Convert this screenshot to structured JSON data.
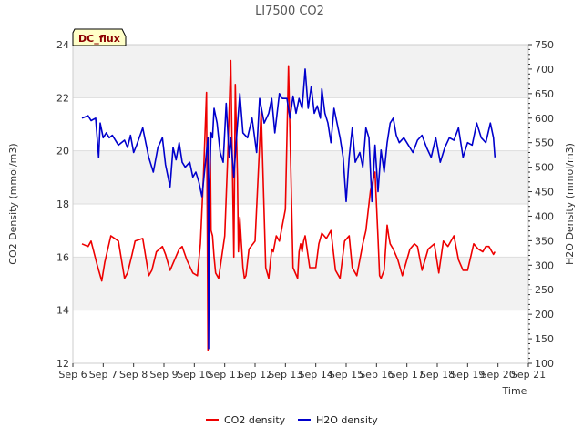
{
  "chart_data": {
    "type": "line",
    "title": "LI7500 CO2",
    "site_tag": "DC_flux",
    "xlabel": "Time",
    "ylabel_left": "CO2 Density (mmol/m3)",
    "ylabel_right": "H2O Density (mmol/m3)",
    "x_ticks": [
      "Sep 6",
      "Sep 7",
      "Sep 8",
      "Sep 9",
      "Sep 10",
      "Sep 11",
      "Sep 12",
      "Sep 13",
      "Sep 14",
      "Sep 15",
      "Sep 16",
      "Sep 17",
      "Sep 18",
      "Sep 19",
      "Sep 20",
      "Sep 21"
    ],
    "xlim": [
      0,
      15
    ],
    "ylim_left": [
      12,
      24
    ],
    "ylim_right": [
      100,
      750
    ],
    "y_ticks_left": [
      12,
      14,
      16,
      18,
      20,
      22,
      24
    ],
    "y_ticks_right": [
      100,
      150,
      200,
      250,
      300,
      350,
      400,
      450,
      500,
      550,
      600,
      650,
      700,
      750
    ],
    "grid": true,
    "legend_position": "bottom-center",
    "series": [
      {
        "name": "CO2 density",
        "color": "#ee0000",
        "axis": "left",
        "x": [
          0.3,
          0.5,
          0.6,
          0.8,
          0.95,
          1.05,
          1.25,
          1.5,
          1.7,
          1.8,
          1.95,
          2.05,
          2.3,
          2.5,
          2.6,
          2.75,
          2.95,
          3.05,
          3.2,
          3.5,
          3.6,
          3.75,
          3.95,
          4.1,
          4.2,
          4.3,
          4.4,
          4.45,
          4.5,
          4.52,
          4.55,
          4.6,
          4.65,
          4.7,
          4.8,
          5.0,
          5.1,
          5.2,
          5.3,
          5.35,
          5.42,
          5.45,
          5.5,
          5.55,
          5.6,
          5.65,
          5.7,
          5.8,
          6.0,
          6.1,
          6.2,
          6.35,
          6.45,
          6.55,
          6.6,
          6.7,
          6.8,
          7.0,
          7.1,
          7.25,
          7.4,
          7.45,
          7.5,
          7.55,
          7.6,
          7.65,
          7.7,
          7.8,
          8.0,
          8.1,
          8.2,
          8.35,
          8.5,
          8.65,
          8.8,
          8.95,
          9.1,
          9.2,
          9.35,
          9.55,
          9.65,
          9.8,
          9.95,
          10.05,
          10.1,
          10.15,
          10.25,
          10.35,
          10.4,
          10.45,
          10.55,
          10.7,
          10.85,
          10.95,
          11.1,
          11.25,
          11.35,
          11.5,
          11.7,
          11.9,
          12.05,
          12.2,
          12.35,
          12.55,
          12.7,
          12.85,
          13.0,
          13.2,
          13.35,
          13.5,
          13.6,
          13.7,
          13.8,
          13.85,
          13.9
        ],
        "values": [
          16.5,
          16.4,
          16.6,
          15.7,
          15.1,
          15.8,
          16.8,
          16.6,
          15.2,
          15.4,
          16.1,
          16.6,
          16.7,
          15.3,
          15.5,
          16.2,
          16.4,
          16.1,
          15.5,
          16.3,
          16.4,
          15.9,
          15.4,
          15.3,
          16.5,
          19.0,
          22.2,
          12.5,
          16.0,
          20.7,
          17.0,
          16.8,
          16.0,
          15.4,
          15.2,
          16.8,
          19.8,
          23.4,
          16.0,
          22.5,
          19.0,
          16.2,
          17.5,
          16.5,
          15.6,
          15.2,
          15.3,
          16.3,
          16.6,
          19.0,
          21.5,
          15.6,
          15.2,
          16.3,
          16.2,
          16.8,
          16.6,
          17.8,
          23.2,
          15.6,
          15.2,
          16.2,
          16.5,
          16.2,
          16.6,
          16.8,
          16.4,
          15.6,
          15.6,
          16.5,
          16.9,
          16.7,
          17.0,
          15.5,
          15.2,
          16.6,
          16.8,
          15.6,
          15.3,
          16.5,
          17.0,
          18.5,
          19.2,
          16.7,
          15.3,
          15.2,
          15.5,
          17.2,
          16.8,
          16.5,
          16.3,
          15.9,
          15.3,
          15.7,
          16.3,
          16.5,
          16.4,
          15.5,
          16.3,
          16.5,
          15.4,
          16.6,
          16.4,
          16.8,
          15.9,
          15.5,
          15.5,
          16.5,
          16.3,
          16.2,
          16.4,
          16.4,
          16.2,
          16.1,
          16.2
        ]
      },
      {
        "name": "H2O density",
        "color": "#0000cc",
        "axis": "right",
        "x": [
          0.3,
          0.5,
          0.6,
          0.75,
          0.85,
          0.9,
          1.0,
          1.1,
          1.2,
          1.3,
          1.5,
          1.7,
          1.8,
          1.9,
          2.0,
          2.1,
          2.3,
          2.5,
          2.65,
          2.8,
          2.95,
          3.05,
          3.2,
          3.3,
          3.4,
          3.5,
          3.6,
          3.7,
          3.85,
          3.95,
          4.05,
          4.15,
          4.25,
          4.35,
          4.45,
          4.47,
          4.5,
          4.55,
          4.6,
          4.65,
          4.75,
          4.85,
          4.95,
          5.05,
          5.15,
          5.2,
          5.3,
          5.4,
          5.5,
          5.6,
          5.75,
          5.9,
          6.05,
          6.15,
          6.3,
          6.45,
          6.55,
          6.65,
          6.8,
          6.9,
          7.05,
          7.15,
          7.25,
          7.35,
          7.45,
          7.55,
          7.65,
          7.75,
          7.85,
          7.95,
          8.05,
          8.15,
          8.2,
          8.3,
          8.4,
          8.5,
          8.6,
          8.7,
          8.8,
          8.9,
          9.0,
          9.1,
          9.2,
          9.3,
          9.45,
          9.55,
          9.65,
          9.75,
          9.85,
          9.95,
          10.05,
          10.15,
          10.25,
          10.35,
          10.45,
          10.55,
          10.65,
          10.75,
          10.9,
          11.05,
          11.2,
          11.35,
          11.5,
          11.65,
          11.8,
          11.95,
          12.1,
          12.25,
          12.4,
          12.55,
          12.7,
          12.85,
          13.0,
          13.15,
          13.3,
          13.45,
          13.6,
          13.75,
          13.85,
          13.9
        ],
        "values": [
          600,
          605,
          595,
          600,
          520,
          590,
          560,
          570,
          560,
          565,
          545,
          555,
          540,
          565,
          530,
          545,
          580,
          520,
          490,
          540,
          560,
          505,
          460,
          540,
          515,
          550,
          510,
          500,
          510,
          480,
          490,
          470,
          440,
          500,
          560,
          130,
          470,
          570,
          560,
          620,
          590,
          530,
          510,
          630,
          520,
          560,
          480,
          570,
          650,
          570,
          560,
          600,
          530,
          640,
          590,
          610,
          640,
          570,
          650,
          640,
          640,
          600,
          645,
          610,
          640,
          620,
          700,
          620,
          665,
          610,
          625,
          600,
          660,
          610,
          590,
          550,
          620,
          590,
          560,
          520,
          430,
          520,
          580,
          510,
          530,
          500,
          580,
          560,
          430,
          545,
          450,
          535,
          490,
          550,
          590,
          600,
          565,
          550,
          560,
          545,
          530,
          555,
          565,
          540,
          520,
          560,
          510,
          540,
          560,
          555,
          580,
          520,
          550,
          545,
          590,
          560,
          550,
          590,
          560,
          520
        ]
      }
    ]
  },
  "legend": {
    "items": [
      {
        "label": "CO2 density",
        "color": "#ee0000"
      },
      {
        "label": "H2O density",
        "color": "#0000cc"
      }
    ]
  }
}
